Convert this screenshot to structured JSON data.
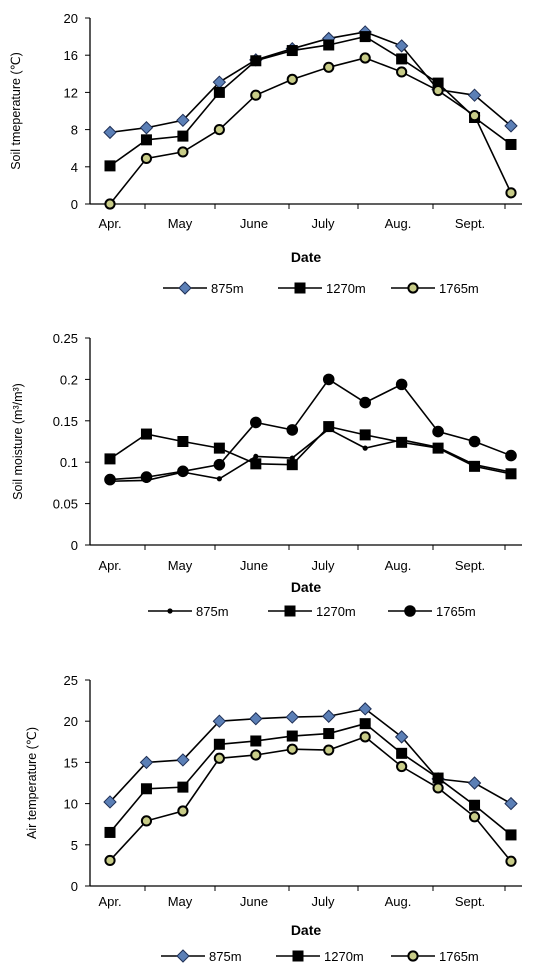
{
  "chart_data": [
    {
      "type": "line",
      "ylabel": "Soil tmeperature (℃)",
      "xlabel": "Date",
      "ylim": [
        0,
        20
      ],
      "yticks": [
        0,
        4,
        8,
        12,
        16,
        20
      ],
      "xtick_labels": [
        "Apr.",
        "May",
        "June",
        "July",
        "Aug.",
        "Sept."
      ],
      "grid": false,
      "legend": "bottom",
      "series": [
        {
          "name": "875m",
          "marker": "diamond",
          "color": "#4a6fa5",
          "values": [
            7.7,
            8.2,
            9.0,
            13.1,
            15.5,
            16.7,
            17.8,
            18.5,
            17.0,
            12.3,
            11.7,
            8.4
          ]
        },
        {
          "name": "1270m",
          "marker": "square",
          "color": "#000000",
          "values": [
            4.1,
            6.9,
            7.3,
            12.0,
            15.4,
            16.5,
            17.1,
            18.0,
            15.6,
            13.0,
            9.3,
            6.4
          ]
        },
        {
          "name": "1765m",
          "marker": "circle-olive",
          "color": "#000000",
          "values": [
            0.0,
            4.9,
            5.6,
            8.0,
            11.7,
            13.4,
            14.7,
            15.7,
            14.2,
            12.2,
            9.5,
            1.2
          ]
        }
      ]
    },
    {
      "type": "line",
      "ylabel": "Soil moisture (m³/m³)",
      "xlabel": "Date",
      "ylim": [
        0,
        0.25
      ],
      "yticks": [
        0,
        0.05,
        0.1,
        0.15,
        0.2,
        0.25
      ],
      "xtick_labels": [
        "Apr.",
        "May",
        "June",
        "July",
        "Aug.",
        "Sept."
      ],
      "grid": false,
      "legend": "bottom",
      "series": [
        {
          "name": "875m",
          "marker": "small-dot",
          "color": "#000000",
          "values": [
            0.077,
            0.078,
            0.088,
            0.08,
            0.107,
            0.105,
            0.14,
            0.117,
            0.127,
            0.118,
            0.097,
            0.088
          ]
        },
        {
          "name": "1270m",
          "marker": "square",
          "color": "#000000",
          "values": [
            0.104,
            0.134,
            0.125,
            0.117,
            0.098,
            0.097,
            0.143,
            0.133,
            0.124,
            0.117,
            0.095,
            0.086
          ]
        },
        {
          "name": "1765m",
          "marker": "big-dot",
          "color": "#000000",
          "values": [
            0.079,
            0.082,
            0.089,
            0.097,
            0.148,
            0.139,
            0.2,
            0.172,
            0.194,
            0.137,
            0.125,
            0.108
          ]
        }
      ]
    },
    {
      "type": "line",
      "ylabel": "Air temperature (℃)",
      "xlabel": "Date",
      "ylim": [
        0,
        25
      ],
      "yticks": [
        0,
        5,
        10,
        15,
        20,
        25
      ],
      "xtick_labels": [
        "Apr.",
        "May",
        "June",
        "July",
        "Aug.",
        "Sept."
      ],
      "grid": false,
      "legend": "bottom",
      "series": [
        {
          "name": "875m",
          "marker": "diamond",
          "color": "#4a6fa5",
          "values": [
            10.2,
            15.0,
            15.3,
            20.0,
            20.3,
            20.5,
            20.6,
            21.5,
            18.1,
            13.0,
            12.5,
            10.0
          ]
        },
        {
          "name": "1270m",
          "marker": "square",
          "color": "#000000",
          "values": [
            6.5,
            11.8,
            12.0,
            17.2,
            17.6,
            18.2,
            18.5,
            19.7,
            16.1,
            13.1,
            9.8,
            6.2
          ]
        },
        {
          "name": "1765m",
          "marker": "circle-olive",
          "color": "#000000",
          "values": [
            3.1,
            7.9,
            9.1,
            15.5,
            15.9,
            16.6,
            16.5,
            18.1,
            14.5,
            11.9,
            8.4,
            3.0
          ]
        }
      ]
    }
  ]
}
